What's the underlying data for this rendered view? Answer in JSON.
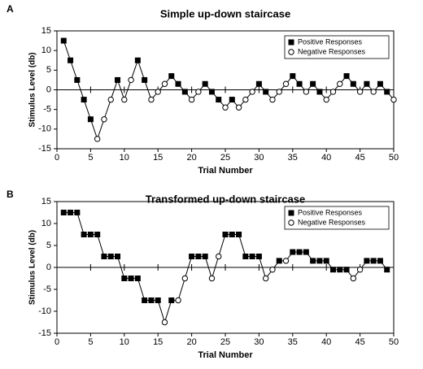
{
  "chart_data": [
    {
      "type": "line",
      "panel": "A",
      "title": "Simple up-down staircase",
      "xlabel": "Trial Number",
      "ylabel": "Stimulus Level (db)",
      "x": [
        1,
        2,
        3,
        4,
        5,
        6,
        7,
        8,
        9,
        10,
        11,
        12,
        13,
        14,
        15,
        16,
        17,
        18,
        19,
        20,
        21,
        22,
        23,
        24,
        25,
        26,
        27,
        28,
        29,
        30,
        31,
        32,
        33,
        34,
        35,
        36,
        37,
        38,
        39,
        40,
        41,
        42,
        43,
        44,
        45,
        46,
        47,
        48,
        49,
        50
      ],
      "series": [
        {
          "name": "Positive Responses",
          "color": "#000000",
          "values": [
            12.5,
            7.5,
            2.5,
            -2.5,
            -7.5,
            null,
            null,
            null,
            2.5,
            null,
            null,
            7.5,
            2.5,
            null,
            null,
            null,
            3.5,
            1.5,
            -0.5,
            null,
            null,
            1.5,
            -0.5,
            -2.5,
            null,
            -2.5,
            null,
            null,
            null,
            1.5,
            -0.5,
            null,
            null,
            null,
            3.5,
            1.5,
            null,
            1.5,
            -0.5,
            null,
            null,
            null,
            3.5,
            1.5,
            null,
            1.5,
            null,
            1.5,
            -0.5,
            null
          ]
        },
        {
          "name": "Negative Responses",
          "color": "#ffffff",
          "values": [
            null,
            null,
            null,
            null,
            null,
            -12.5,
            -7.5,
            -2.5,
            null,
            -2.5,
            2.5,
            null,
            null,
            -2.5,
            -0.5,
            1.5,
            null,
            null,
            null,
            -2.5,
            -0.5,
            null,
            null,
            null,
            -4.5,
            null,
            -4.5,
            -2.5,
            -0.5,
            null,
            null,
            -2.5,
            -0.5,
            1.5,
            null,
            null,
            -0.5,
            null,
            null,
            -2.5,
            -0.5,
            1.5,
            null,
            null,
            -0.5,
            null,
            -0.5,
            null,
            null,
            -2.5
          ]
        }
      ],
      "xlim": [
        0,
        50
      ],
      "xticks": [
        0,
        5,
        10,
        15,
        20,
        25,
        30,
        35,
        40,
        45,
        50
      ],
      "ylim": [
        -15,
        15
      ],
      "yticks": [
        -15,
        -10,
        -5,
        0,
        5,
        10,
        15
      ],
      "legend": "upper right"
    },
    {
      "type": "line",
      "panel": "B",
      "title": "Transformed up-down staircase",
      "xlabel": "Trial Number",
      "ylabel": "Stimulus Level (db)",
      "x": [
        1,
        2,
        3,
        4,
        5,
        6,
        7,
        8,
        9,
        10,
        11,
        12,
        13,
        14,
        15,
        16,
        17,
        18,
        19,
        20,
        21,
        22,
        23,
        24,
        25,
        26,
        27,
        28,
        29,
        30,
        31,
        32,
        33,
        34,
        35,
        36,
        37,
        38,
        39,
        40,
        41,
        42,
        43,
        44,
        45,
        46,
        47,
        48,
        49
      ],
      "series": [
        {
          "name": "Positive Responses",
          "color": "#000000",
          "values": [
            12.5,
            12.5,
            12.5,
            7.5,
            7.5,
            7.5,
            2.5,
            2.5,
            2.5,
            -2.5,
            -2.5,
            -2.5,
            -7.5,
            -7.5,
            -7.5,
            null,
            -7.5,
            null,
            null,
            2.5,
            2.5,
            2.5,
            null,
            null,
            7.5,
            7.5,
            7.5,
            2.5,
            2.5,
            2.5,
            null,
            null,
            1.5,
            null,
            3.5,
            3.5,
            3.5,
            1.5,
            1.5,
            1.5,
            -0.5,
            -0.5,
            -0.5,
            null,
            null,
            1.5,
            1.5,
            1.5,
            -0.5
          ]
        },
        {
          "name": "Negative Responses",
          "color": "#ffffff",
          "values": [
            null,
            null,
            null,
            null,
            null,
            null,
            null,
            null,
            null,
            null,
            null,
            null,
            null,
            null,
            null,
            -12.5,
            null,
            -7.5,
            -2.5,
            null,
            null,
            null,
            -2.5,
            2.5,
            null,
            null,
            null,
            null,
            null,
            null,
            -2.5,
            -0.5,
            null,
            1.5,
            null,
            null,
            null,
            null,
            null,
            null,
            null,
            null,
            null,
            -2.5,
            -0.5,
            null,
            null,
            null,
            null
          ]
        }
      ],
      "xlim": [
        0,
        50
      ],
      "xticks": [
        0,
        5,
        10,
        15,
        20,
        25,
        30,
        35,
        40,
        45,
        50
      ],
      "ylim": [
        -15,
        15
      ],
      "yticks": [
        -15,
        -10,
        -5,
        0,
        5,
        10,
        15
      ],
      "legend": "upper right"
    }
  ]
}
